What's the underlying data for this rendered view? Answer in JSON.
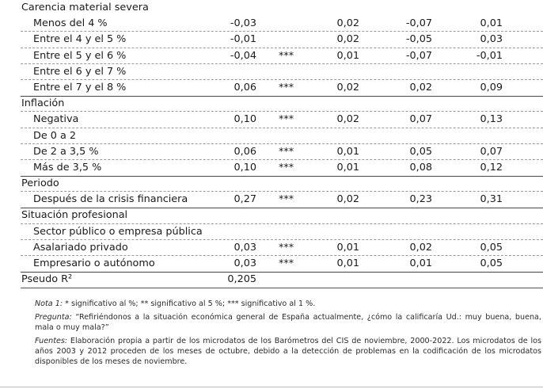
{
  "rows": [
    {
      "label": "Carencia material severa",
      "section": true,
      "dashed": false,
      "solid_top": false,
      "coef": "",
      "sig": "",
      "se": "",
      "lo": "",
      "hi": ""
    },
    {
      "label": "Menos del 4 %",
      "section": false,
      "dashed": true,
      "solid_top": false,
      "coef": "-0,03",
      "sig": "",
      "se": "0,02",
      "lo": "-0,07",
      "hi": "0,01"
    },
    {
      "label": "Entre el 4 y el 5 %",
      "section": false,
      "dashed": true,
      "solid_top": false,
      "coef": "-0,01",
      "sig": "",
      "se": "0,02",
      "lo": "-0,05",
      "hi": "0,03"
    },
    {
      "label": "Entre el 5 y el 6 %",
      "section": false,
      "dashed": true,
      "solid_top": false,
      "coef": "-0,04",
      "sig": "***",
      "se": "0,01",
      "lo": "-0,07",
      "hi": "-0,01"
    },
    {
      "label": "Entre el 6 y el 7 %",
      "section": false,
      "dashed": true,
      "solid_top": false,
      "coef": "",
      "sig": "",
      "se": "",
      "lo": "",
      "hi": ""
    },
    {
      "label": "Entre el 7 y el 8 %",
      "section": false,
      "dashed": false,
      "solid_top": false,
      "coef": "0,06",
      "sig": "***",
      "se": "0,02",
      "lo": "0,02",
      "hi": "0,09"
    },
    {
      "label": "Inflación",
      "section": true,
      "dashed": true,
      "solid_top": true,
      "coef": "",
      "sig": "",
      "se": "",
      "lo": "",
      "hi": ""
    },
    {
      "label": "Negativa",
      "section": false,
      "dashed": true,
      "solid_top": false,
      "coef": "0,10",
      "sig": "***",
      "se": "0,02",
      "lo": "0,07",
      "hi": "0,13"
    },
    {
      "label": "De 0 a 2",
      "section": false,
      "dashed": true,
      "solid_top": false,
      "coef": "",
      "sig": "",
      "se": "",
      "lo": "",
      "hi": ""
    },
    {
      "label": "De 2 a 3,5 %",
      "section": false,
      "dashed": true,
      "solid_top": false,
      "coef": "0,06",
      "sig": "***",
      "se": "0,01",
      "lo": "0,05",
      "hi": "0,07"
    },
    {
      "label": "Más de 3,5 %",
      "section": false,
      "dashed": false,
      "solid_top": false,
      "coef": "0,10",
      "sig": "***",
      "se": "0,01",
      "lo": "0,08",
      "hi": "0,12"
    },
    {
      "label": "Periodo",
      "section": true,
      "dashed": true,
      "solid_top": true,
      "coef": "",
      "sig": "",
      "se": "",
      "lo": "",
      "hi": ""
    },
    {
      "label": "Después de la crisis financiera",
      "section": false,
      "dashed": false,
      "solid_top": false,
      "coef": "0,27",
      "sig": "***",
      "se": "0,02",
      "lo": "0,23",
      "hi": "0,31"
    },
    {
      "label": "Situación profesional",
      "section": true,
      "dashed": true,
      "solid_top": true,
      "coef": "",
      "sig": "",
      "se": "",
      "lo": "",
      "hi": ""
    },
    {
      "label": "Sector público o empresa pública",
      "section": false,
      "dashed": true,
      "solid_top": false,
      "coef": "",
      "sig": "",
      "se": "",
      "lo": "",
      "hi": ""
    },
    {
      "label": "Asalariado privado",
      "section": false,
      "dashed": true,
      "solid_top": false,
      "coef": "0,03",
      "sig": "***",
      "se": "0,01",
      "lo": "0,02",
      "hi": "0,05"
    },
    {
      "label": "Empresario o autónomo",
      "section": false,
      "dashed": false,
      "solid_top": false,
      "coef": "0,03",
      "sig": "***",
      "se": "0,01",
      "lo": "0,01",
      "hi": "0,05"
    },
    {
      "label": "Pseudo R²",
      "section": true,
      "dashed": false,
      "solid_top": true,
      "coef": "0,205",
      "sig": "",
      "se": "",
      "lo": "",
      "hi": ""
    }
  ],
  "notes": {
    "nota_lead": "Nota 1:",
    "nota_text": " * significativo al %; ** significativo al 5 %; *** significativo al 1 %.",
    "pregunta_lead": "Pregunta:",
    "pregunta_text": " “Refiriéndonos a la situación económica general de España actualmente, ¿cómo la calificaría Ud.: muy buena, buena, mala o muy mala?”",
    "fuentes_lead": "Fuentes:",
    "fuentes_text": " Elaboración propia a partir de los microdatos de los Barómetros del CIS de noviembre, 2000-2022. Los microdatos de los años 2003 y 2012 proceden de los meses de octubre, debido a la detección de problemas en la codificación de los microdatos disponibles de los meses de noviembre."
  }
}
